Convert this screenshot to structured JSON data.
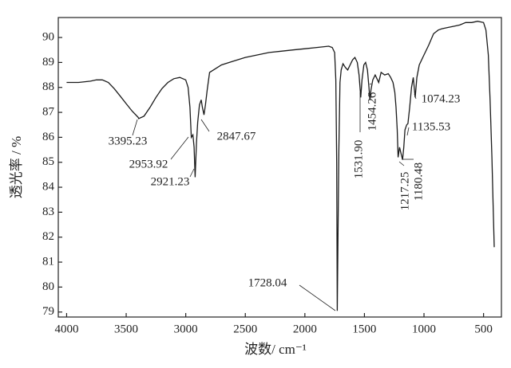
{
  "chart_data": {
    "type": "line",
    "x_label": "波数/ cm⁻¹",
    "y_label": "透光率 / %",
    "x": [
      4000,
      3900,
      3800,
      3750,
      3700,
      3650,
      3600,
      3550,
      3500,
      3450,
      3400,
      3395,
      3350,
      3300,
      3250,
      3200,
      3150,
      3100,
      3050,
      3000,
      2980,
      2965,
      2953,
      2940,
      2930,
      2921,
      2910,
      2900,
      2885,
      2870,
      2860,
      2847,
      2835,
      2820,
      2800,
      2700,
      2600,
      2500,
      2400,
      2300,
      2200,
      2100,
      2000,
      1900,
      1800,
      1770,
      1750,
      1740,
      1733,
      1728,
      1722,
      1715,
      1705,
      1695,
      1680,
      1660,
      1640,
      1620,
      1600,
      1580,
      1560,
      1545,
      1531,
      1520,
      1505,
      1490,
      1475,
      1462,
      1454,
      1445,
      1430,
      1410,
      1390,
      1380,
      1360,
      1330,
      1300,
      1280,
      1260,
      1245,
      1235,
      1225,
      1217,
      1205,
      1195,
      1180,
      1170,
      1160,
      1145,
      1135,
      1120,
      1105,
      1090,
      1074,
      1060,
      1040,
      1000,
      960,
      920,
      880,
      850,
      800,
      750,
      700,
      650,
      600,
      550,
      500,
      480,
      460,
      445,
      430,
      420,
      410
    ],
    "values": [
      88.2,
      88.2,
      88.25,
      88.3,
      88.3,
      88.2,
      87.95,
      87.65,
      87.35,
      87.05,
      86.8,
      86.75,
      86.85,
      87.2,
      87.6,
      87.95,
      88.2,
      88.35,
      88.4,
      88.3,
      88.0,
      87.2,
      86.0,
      86.1,
      85.6,
      84.4,
      85.8,
      86.6,
      87.3,
      87.5,
      87.2,
      86.9,
      87.3,
      87.9,
      88.6,
      88.9,
      89.05,
      89.2,
      89.3,
      89.4,
      89.45,
      89.5,
      89.55,
      89.6,
      89.65,
      89.6,
      89.4,
      88.3,
      85.0,
      79.05,
      82.0,
      85.5,
      88.2,
      88.7,
      88.95,
      88.8,
      88.7,
      88.9,
      89.1,
      89.2,
      89.0,
      88.5,
      87.6,
      88.3,
      88.9,
      89.0,
      88.7,
      88.0,
      87.5,
      87.9,
      88.3,
      88.5,
      88.3,
      88.2,
      88.6,
      88.5,
      88.55,
      88.4,
      88.2,
      87.8,
      87.2,
      86.3,
      85.2,
      85.6,
      85.4,
      85.1,
      85.6,
      86.3,
      86.5,
      86.55,
      87.2,
      88.0,
      88.4,
      87.6,
      88.4,
      88.9,
      89.3,
      89.7,
      90.15,
      90.3,
      90.35,
      90.4,
      90.45,
      90.5,
      90.6,
      90.6,
      90.65,
      90.6,
      90.3,
      89.3,
      87.5,
      85.2,
      83.3,
      81.6
    ],
    "color": "#1a1a1a",
    "xlim": [
      4070,
      350
    ],
    "ylim": [
      78.8,
      90.8
    ],
    "xticks": [
      4000,
      3500,
      3000,
      2500,
      2000,
      1500,
      1000,
      500
    ],
    "yticks": [
      79,
      80,
      81,
      82,
      83,
      84,
      85,
      86,
      87,
      88,
      89,
      90
    ],
    "grid": false,
    "annotations": [
      "3395.23",
      "2953.92",
      "2921.23",
      "2847.67",
      "1728.04",
      "1531.90",
      "1454.26",
      "1217.25",
      "1180.48",
      "1135.53",
      "1074.23"
    ]
  }
}
